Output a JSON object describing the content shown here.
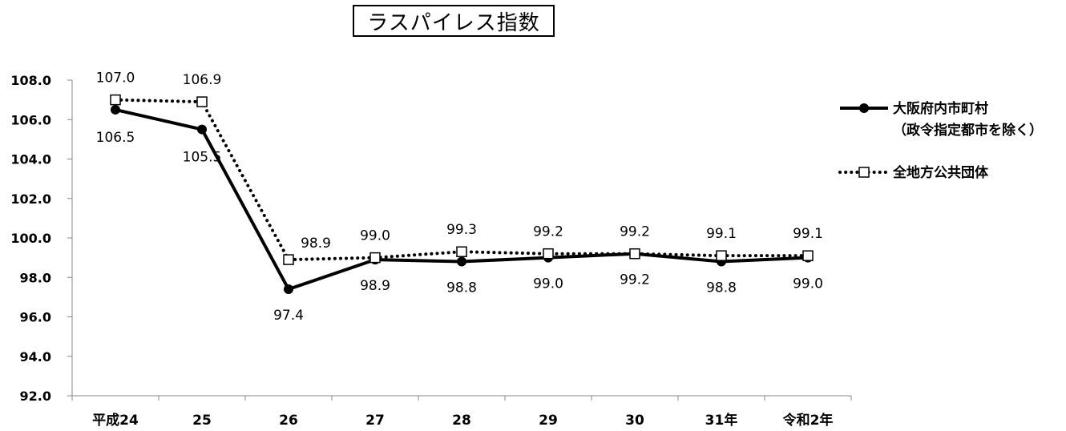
{
  "chart_data": {
    "type": "line",
    "title": "ラスパイレス指数",
    "categories": [
      "平成24",
      "25",
      "26",
      "27",
      "28",
      "29",
      "30",
      "31年",
      "令和2年"
    ],
    "series": [
      {
        "name": "大阪府内市町村\n（政令指定都市を除く）",
        "legend_lines": [
          "大阪府内市町村",
          "（政令指定都市を除く）"
        ],
        "style": "solid-circle",
        "color": "#000000",
        "values": [
          106.5,
          105.5,
          97.4,
          98.9,
          98.8,
          99.0,
          99.2,
          98.8,
          99.0
        ],
        "labels": [
          "106.5",
          "105.5",
          "97.4",
          "98.9",
          "98.8",
          "99.0",
          "99.2",
          "98.8",
          "99.0"
        ]
      },
      {
        "name": "全地方公共団体",
        "legend_lines": [
          "全地方公共団体"
        ],
        "style": "dotted-square",
        "color": "#000000",
        "values": [
          107.0,
          106.9,
          98.9,
          99.0,
          99.3,
          99.2,
          99.2,
          99.1,
          99.1
        ],
        "labels": [
          "107.0",
          "106.9",
          "98.9",
          "99.0",
          "99.3",
          "99.2",
          "99.2",
          "99.1",
          "99.1"
        ]
      }
    ],
    "ylim": [
      92.0,
      108.0
    ],
    "yticks": [
      "92.0",
      "94.0",
      "96.0",
      "98.0",
      "100.0",
      "102.0",
      "104.0",
      "106.0",
      "108.0"
    ],
    "grid": false,
    "legend_position": "right",
    "xlabel": "",
    "ylabel": ""
  }
}
